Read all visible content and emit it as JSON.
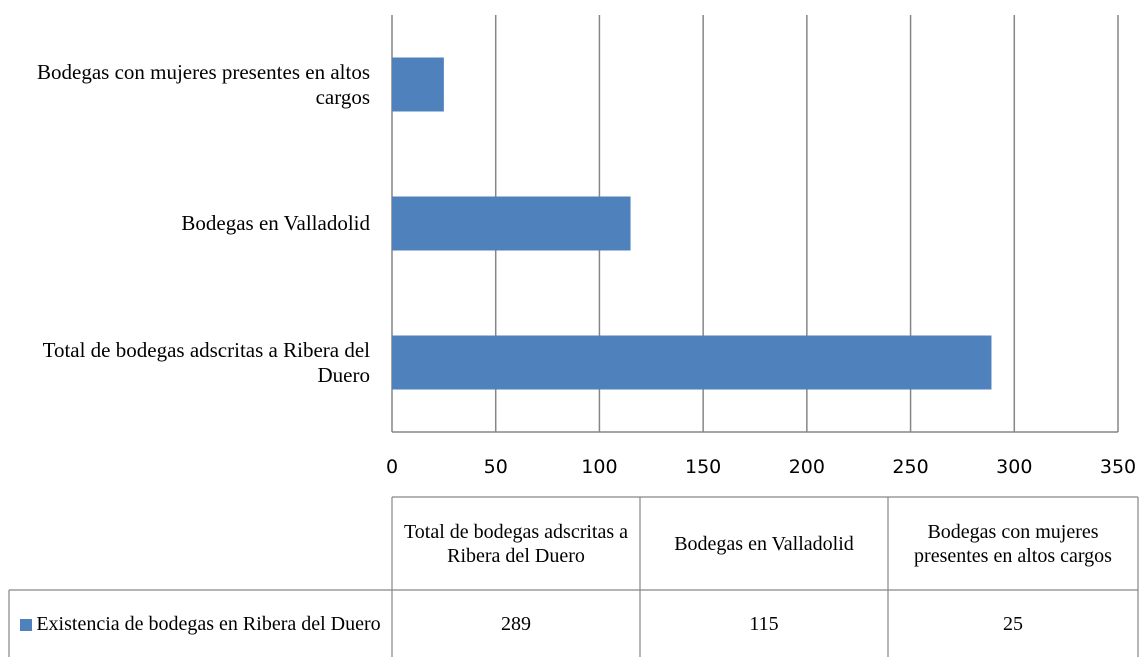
{
  "chart_data": {
    "type": "bar",
    "orientation": "horizontal",
    "categories": [
      "Total de bodegas adscritas a Ribera del Duero",
      "Bodegas en Valladolid",
      "Bodegas con mujeres presentes en altos cargos"
    ],
    "series": [
      {
        "name": "Existencia de bodegas en Ribera del Duero",
        "color": "#4f81bd",
        "values": [
          289,
          115,
          25
        ]
      }
    ],
    "xlim": [
      0,
      350
    ],
    "xticks": [
      0,
      50,
      100,
      150,
      200,
      250,
      300,
      350
    ],
    "grid": true,
    "legend": "table"
  }
}
